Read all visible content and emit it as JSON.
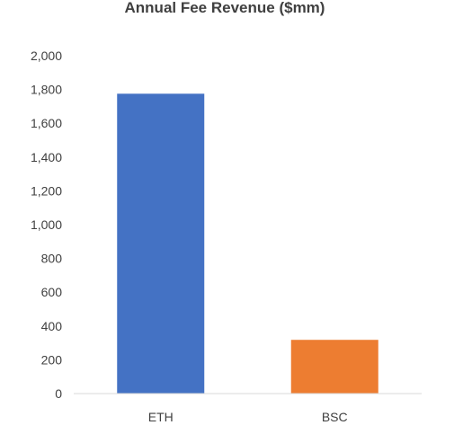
{
  "chart_data": {
    "type": "bar",
    "title": "Annual Fee Revenue ($mm)",
    "xlabel": "",
    "ylabel": "",
    "categories": [
      "ETH",
      "BSC"
    ],
    "values": [
      1775,
      318
    ],
    "colors": [
      "#4472C4",
      "#ED7D31"
    ],
    "ylim": [
      0,
      2000
    ],
    "yticks": [
      "0",
      "200",
      "400",
      "600",
      "800",
      "1,000",
      "1,200",
      "1,400",
      "1,600",
      "1,800",
      "2,000"
    ],
    "grid": false,
    "legend": "none"
  }
}
